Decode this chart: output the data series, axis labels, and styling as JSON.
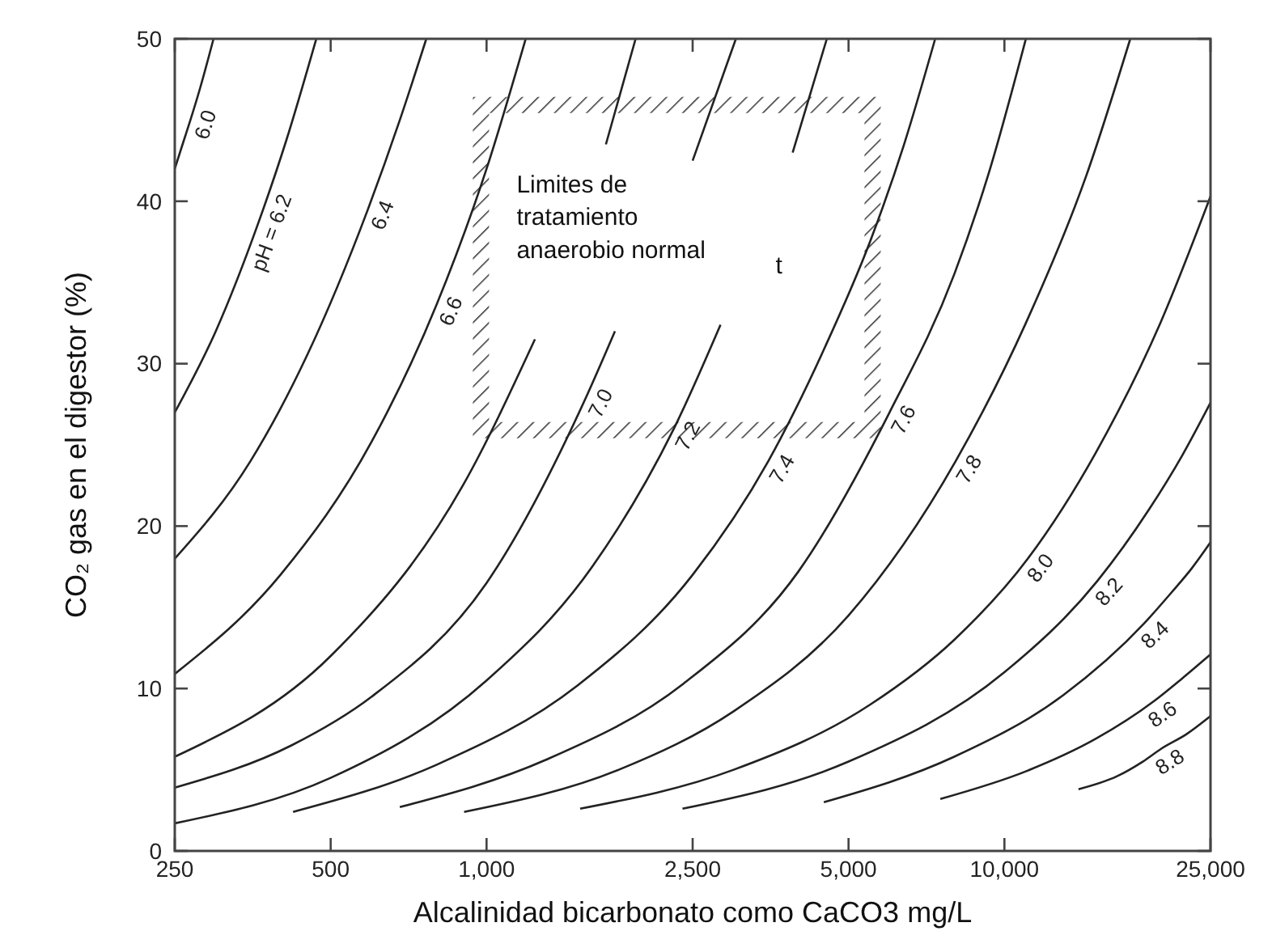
{
  "chart_data": {
    "type": "line",
    "xlabel": "Alcalinidad bicarbonato como CaCO3 mg/L",
    "ylabel": "CO₂   gas en el digestor (%)",
    "log": "x",
    "xlim": [
      250,
      25000
    ],
    "xticks": [
      250,
      500,
      {
        "value": 1000,
        "label": "1,000"
      },
      {
        "value": 2500,
        "label": "2,500"
      },
      {
        "value": 5000,
        "label": "5,000"
      },
      {
        "value": 10000,
        "label": "10,000"
      },
      {
        "value": 25000,
        "label": "25,000"
      }
    ],
    "ylim": [
      0,
      50
    ],
    "yticks": [
      0,
      10,
      20,
      30,
      40,
      50
    ],
    "grid": false,
    "marker": "none",
    "line_style": "solid",
    "series": [
      {
        "name": "6.0",
        "color": "#222222",
        "x": [
          250,
          260,
          268,
          280,
          297
        ],
        "values": [
          42,
          43.7,
          45,
          47,
          50
        ]
      },
      {
        "name": "pH = 6.2",
        "color": "#222222",
        "x": [
          250,
          300,
          360,
          410,
          469
        ],
        "values": [
          27,
          32,
          38.4,
          43.7,
          50
        ]
      },
      {
        "name": "6.4",
        "color": "#222222",
        "x": [
          250,
          350,
          450,
          590,
          680,
          765
        ],
        "values": [
          18,
          24,
          30.5,
          39.5,
          45,
          50
        ]
      },
      {
        "name": "6.6",
        "color": "#222222",
        "x": [
          250,
          400,
          600,
          800,
          1000,
          1190
        ],
        "values": [
          10.9,
          17,
          25.2,
          33.6,
          42,
          50
        ]
      },
      {
        "color": "#222222",
        "x": [
          250,
          500,
          900,
          1240,
          1500,
          1700,
          1940
        ],
        "values": [
          5.8,
          12,
          22.5,
          31.5,
          null,
          43.5,
          50
        ]
      },
      {
        "name": "7.0",
        "color": "#222222",
        "x": [
          250,
          420,
          600,
          1000,
          1560,
          1770,
          2100,
          2500,
          3030
        ],
        "values": [
          3.9,
          6.5,
          9.5,
          16.5,
          28,
          32,
          null,
          42.5,
          50
        ]
      },
      {
        "name": "7.2",
        "color": "#222222",
        "x": [
          250,
          500,
          1000,
          1600,
          2300,
          2830,
          3300,
          3900,
          4540
        ],
        "values": [
          1.7,
          4.5,
          10.5,
          17.5,
          26,
          32.4,
          null,
          43,
          50
        ]
      },
      {
        "name": "7.4",
        "color": "#222222",
        "x": [
          423,
          800,
          1500,
          2500,
          3500,
          4500,
          5500,
          6400,
          7350
        ],
        "values": [
          2.4,
          5.3,
          10.2,
          17,
          24,
          31,
          37.5,
          43.5,
          50
        ]
      },
      {
        "name": "7.6",
        "color": "#222222",
        "x": [
          680,
          1300,
          2400,
          4000,
          6000,
          8000,
          9300,
          11000
        ],
        "values": [
          2.7,
          5.6,
          10.3,
          17.2,
          27,
          35.5,
          41.6,
          50
        ]
      },
      {
        "name": "7.8",
        "color": "#222222",
        "x": [
          905,
          1800,
          3000,
          5000,
          8050,
          11000,
          14400,
          17500
        ],
        "values": [
          2.4,
          5,
          8.6,
          14.5,
          24,
          32.5,
          41.6,
          50
        ]
      },
      {
        "name": "8.0",
        "color": "#222222",
        "x": [
          1516,
          3000,
          5500,
          8000,
          11100,
          15000,
          20000,
          25000
        ],
        "values": [
          2.6,
          5,
          9,
          13,
          18,
          24.5,
          32.5,
          40.3
        ]
      },
      {
        "name": "8.2",
        "color": "#222222",
        "x": [
          2390,
          5000,
          10000,
          15100,
          19000,
          22000,
          25000
        ],
        "values": [
          2.6,
          5.5,
          11,
          16.6,
          21,
          24.3,
          27.6
        ]
      },
      {
        "name": "8.4",
        "color": "#222222",
        "x": [
          4480,
          8000,
          13000,
          18600,
          21000,
          23000,
          25000
        ],
        "values": [
          3,
          5.8,
          9.6,
          14,
          15.9,
          17.4,
          19
        ]
      },
      {
        "name": "8.6",
        "color": "#222222",
        "x": [
          7520,
          11000,
          15000,
          19400,
          22000,
          25000
        ],
        "values": [
          3.2,
          4.9,
          6.9,
          9.2,
          10.6,
          12.1
        ]
      },
      {
        "name": "8.8",
        "color": "#222222",
        "x": [
          13900,
          16500,
          18500,
          20100,
          22500,
          25000
        ],
        "values": [
          3.8,
          4.6,
          5.5,
          6.3,
          7.2,
          8.3
        ]
      }
    ],
    "annotations": [
      "Limites de\ntratamiento\nanaerobio normal",
      "t"
    ]
  }
}
